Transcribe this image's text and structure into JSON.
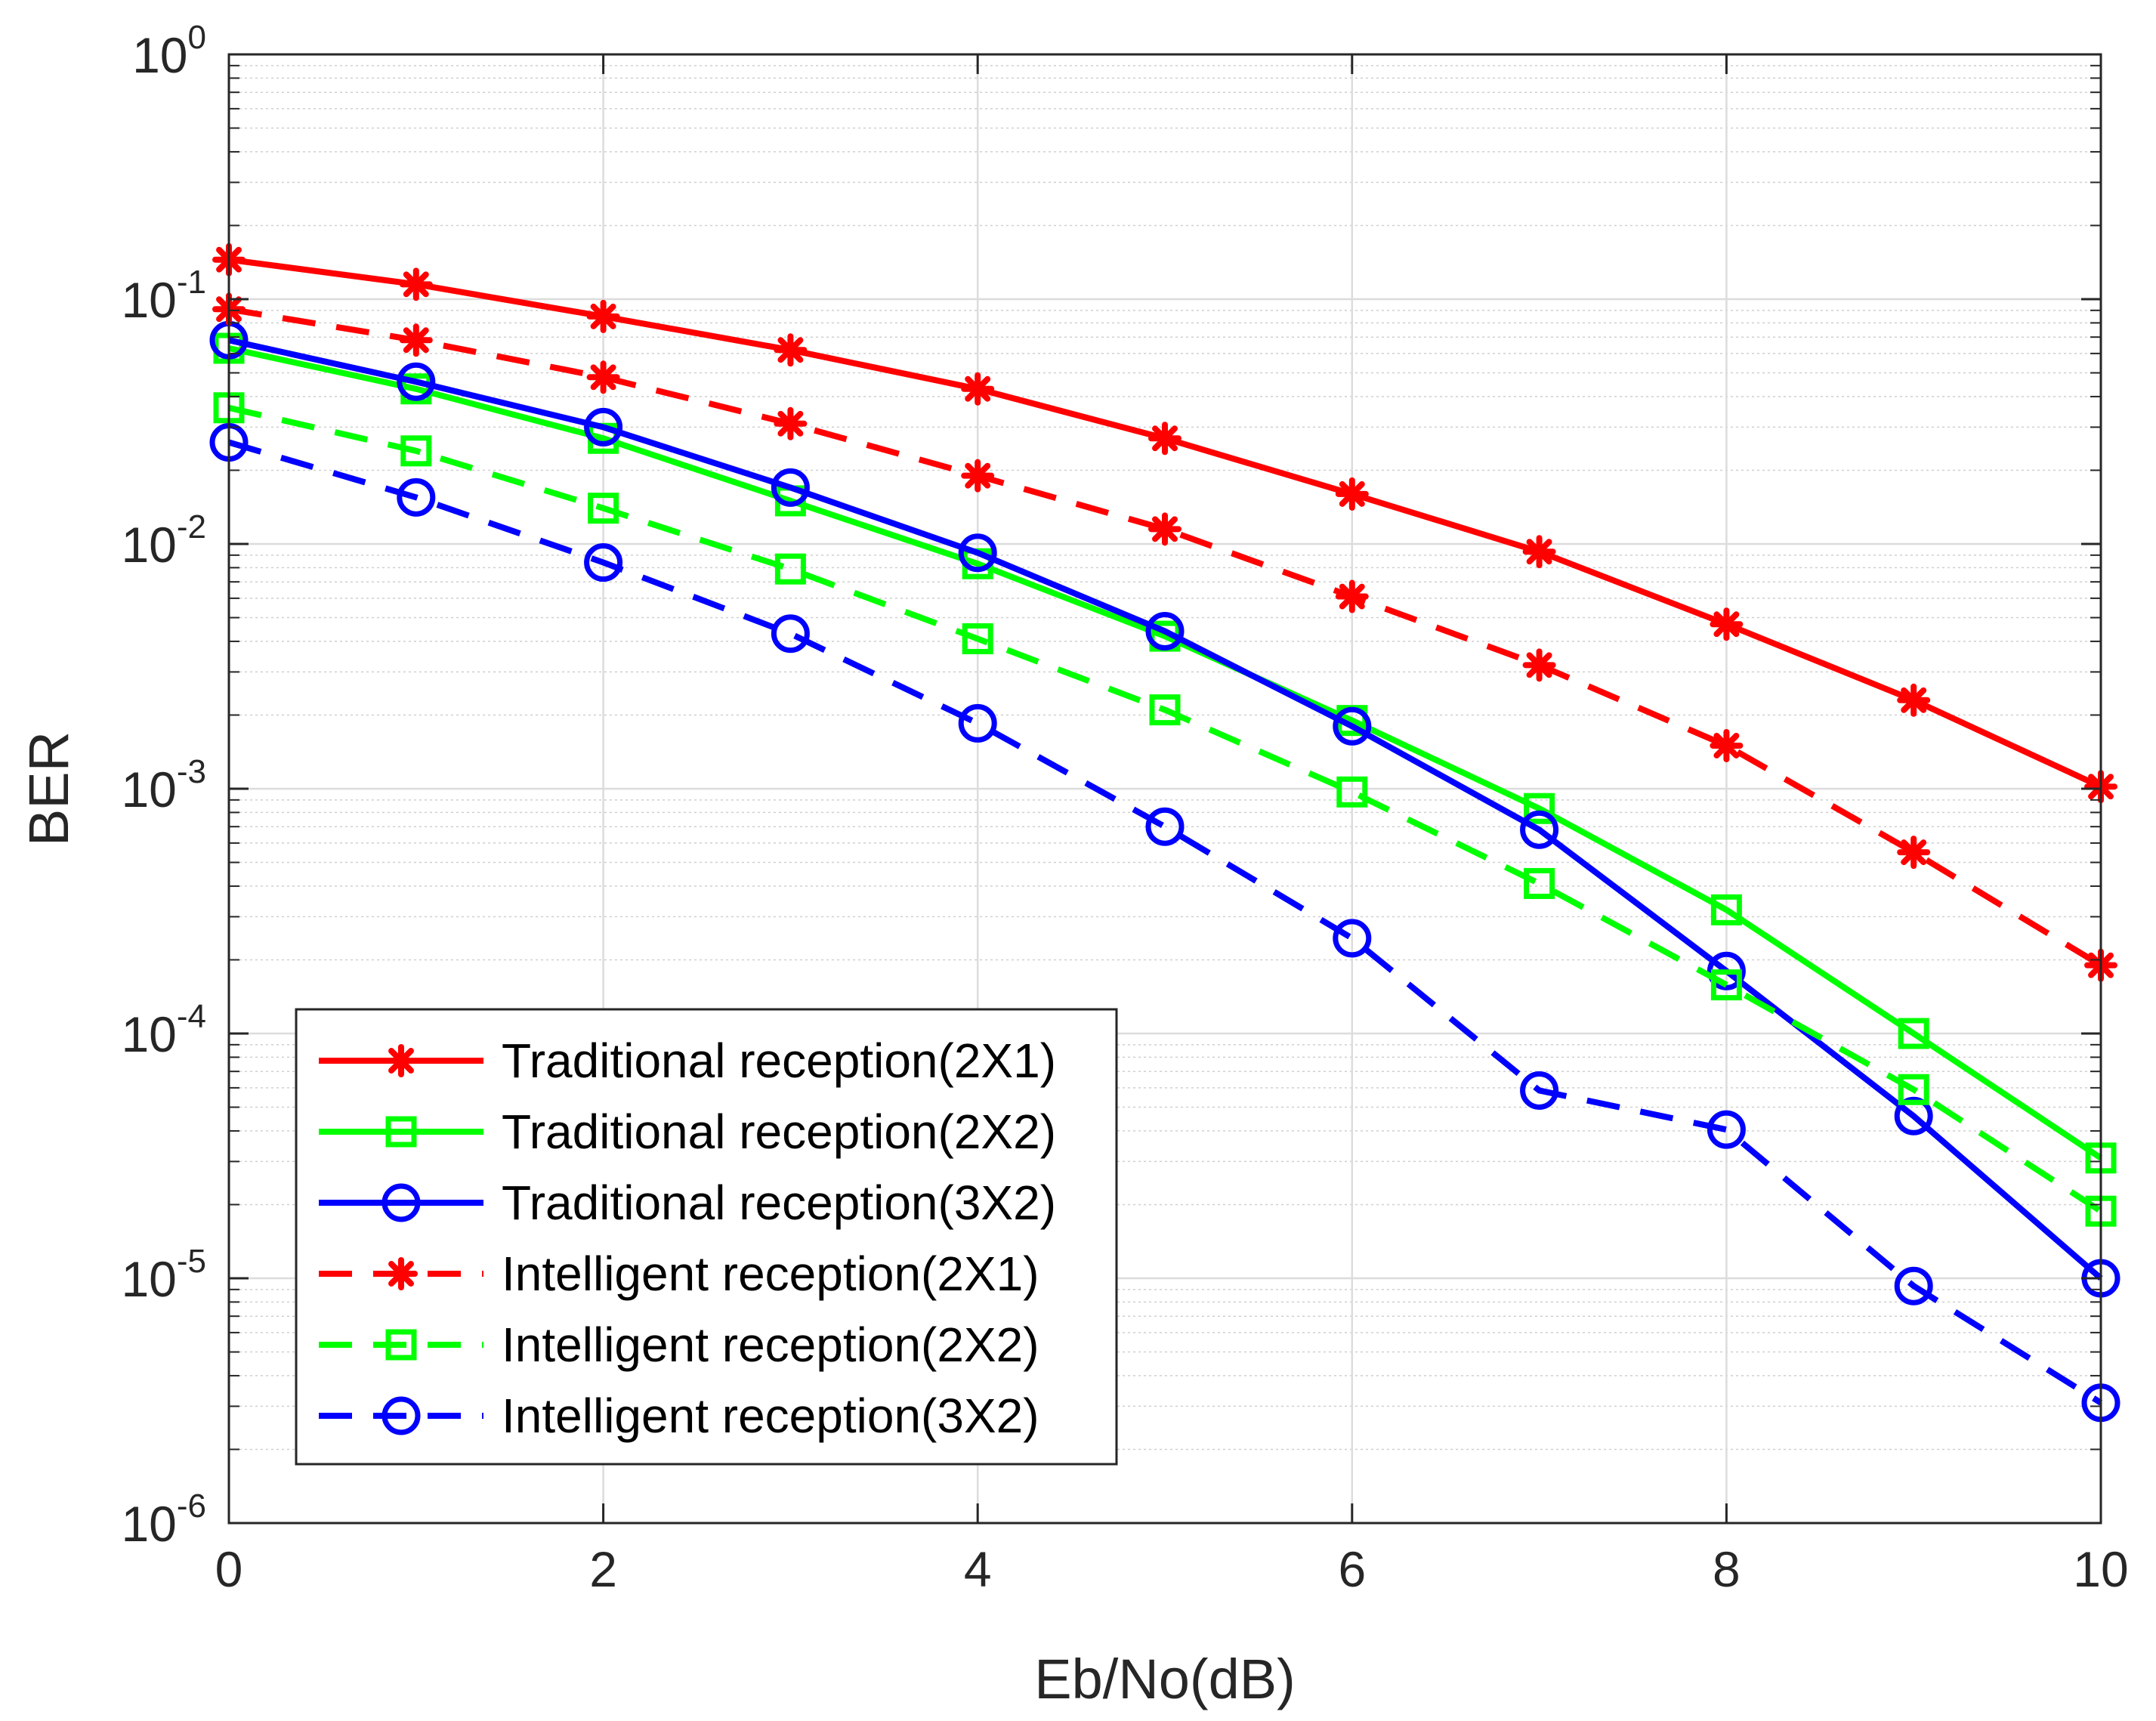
{
  "chart_data": {
    "type": "line",
    "title": "",
    "xlabel": "Eb/No(dB)",
    "ylabel": "BER",
    "xlim": [
      0,
      10
    ],
    "ylim": [
      1e-06,
      1
    ],
    "yscale": "log",
    "grid": true,
    "legend_position": "bottom-left",
    "x": [
      0,
      1,
      2,
      3,
      4,
      5,
      6,
      7,
      8,
      9,
      10
    ],
    "x_ticks": [
      0,
      2,
      4,
      6,
      8,
      10
    ],
    "x_tick_labels": [
      "0",
      "2",
      "4",
      "6",
      "8",
      "10"
    ],
    "y_ticks": [
      {
        "value": 1,
        "base": "10",
        "exp": "0"
      },
      {
        "value": 0.1,
        "base": "10",
        "exp": "-1"
      },
      {
        "value": 0.01,
        "base": "10",
        "exp": "-2"
      },
      {
        "value": 0.001,
        "base": "10",
        "exp": "-3"
      },
      {
        "value": 0.0001,
        "base": "10",
        "exp": "-4"
      },
      {
        "value": 1e-05,
        "base": "10",
        "exp": "-5"
      },
      {
        "value": 1e-06,
        "base": "10",
        "exp": "-6"
      }
    ],
    "series": [
      {
        "name": "Traditional reception(2X1)",
        "color": "#ff0000",
        "dash": "solid",
        "marker": "asterisk",
        "values": [
          0.145,
          0.115,
          0.085,
          0.062,
          0.043,
          0.027,
          0.016,
          0.0093,
          0.0047,
          0.0023,
          0.00102
        ]
      },
      {
        "name": "Traditional reception(2X2)",
        "color": "#00ff00",
        "dash": "solid",
        "marker": "square",
        "values": [
          0.063,
          0.043,
          0.027,
          0.015,
          0.0083,
          0.0042,
          0.0019,
          0.00083,
          0.00032,
          0.0001,
          3.1e-05
        ]
      },
      {
        "name": "Traditional reception(3X2)",
        "color": "#0000ff",
        "dash": "solid",
        "marker": "circle",
        "values": [
          0.068,
          0.046,
          0.03,
          0.017,
          0.0092,
          0.0044,
          0.0018,
          0.00068,
          0.00018,
          4.6e-05,
          1e-05
        ]
      },
      {
        "name": "Intelligent reception(2X1)",
        "color": "#ff0000",
        "dash": "dashed",
        "marker": "asterisk",
        "values": [
          0.091,
          0.068,
          0.048,
          0.031,
          0.019,
          0.0115,
          0.0061,
          0.0032,
          0.0015,
          0.00055,
          0.00019
        ]
      },
      {
        "name": "Intelligent reception(2X2)",
        "color": "#00ff00",
        "dash": "dashed",
        "marker": "square",
        "values": [
          0.036,
          0.024,
          0.014,
          0.0079,
          0.0041,
          0.0021,
          0.00097,
          0.00041,
          0.000158,
          5.9e-05,
          1.88e-05
        ]
      },
      {
        "name": "Intelligent reception(3X2)",
        "color": "#0000ff",
        "dash": "dashed",
        "marker": "circle",
        "values": [
          0.026,
          0.0155,
          0.0084,
          0.0043,
          0.00185,
          0.0007,
          0.000245,
          5.85e-05,
          4.05e-05,
          9.3e-06,
          3.1e-06
        ]
      }
    ]
  }
}
